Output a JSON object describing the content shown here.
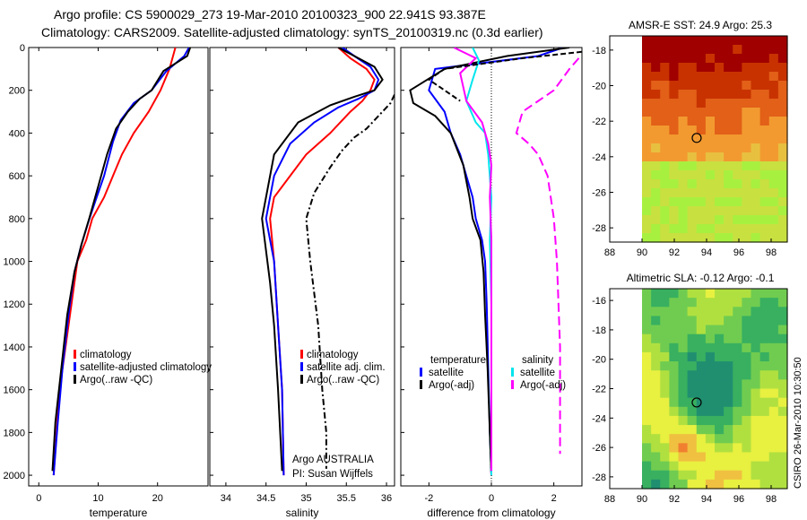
{
  "header": {
    "title_line1": "Argo profile: CS 5900029_273 19-Mar-2010 20100323_900 22.941S 93.387E",
    "title_line2": "Climatology: CARS2009. Satellite-adjusted climatology: synTS_20100319.nc (0.3d earlier)"
  },
  "credit": {
    "argo_line1": "Argo AUSTRALIA",
    "argo_line2": "PI: Susan Wijffels",
    "csiro_stamp": "CSIRO 26-Mar-2010 10:30:50"
  },
  "colors": {
    "climatology": "#ff0000",
    "satellite": "#0000ff",
    "argo": "#000000",
    "cyan": "#00e5ee",
    "magenta": "#ff00ff"
  },
  "chart_data": [
    {
      "type": "line",
      "name": "temperature-panel",
      "xlabel": "temperature",
      "xlim": [
        -1.7,
        28.5
      ],
      "ylim": [
        0,
        2050
      ],
      "y_reversed": true,
      "xticks": [
        0,
        10,
        20
      ],
      "yticks": [
        0,
        200,
        400,
        600,
        800,
        1000,
        1200,
        1400,
        1600,
        1800,
        2000
      ],
      "legend": [
        "climatology",
        "satellite-adjusted climatology",
        "Argo(..raw -QC)"
      ],
      "series": [
        {
          "key": "climatology",
          "color": "#ff0000",
          "dash": "",
          "x": [
            23.0,
            22.8,
            22.0,
            20.5,
            18.5,
            16.0,
            14.0,
            12.5,
            11.0,
            9.0,
            8.0,
            6.5,
            5.5,
            4.5,
            3.5,
            3.0,
            2.5
          ],
          "y": [
            0,
            20,
            100,
            200,
            300,
            400,
            500,
            600,
            700,
            800,
            900,
            1000,
            1200,
            1400,
            1600,
            1800,
            2000
          ]
        },
        {
          "key": "satellite",
          "color": "#0000ff",
          "dash": "",
          "x": [
            25.3,
            24.5,
            21.5,
            19.0,
            16.0,
            13.8,
            12.5,
            11.0,
            9.5,
            8.3,
            7.2,
            6.0,
            5.0,
            4.0,
            3.2,
            2.5
          ],
          "y": [
            0,
            40,
            110,
            200,
            260,
            340,
            440,
            600,
            720,
            820,
            920,
            1050,
            1250,
            1500,
            1750,
            2000
          ]
        },
        {
          "key": "argo",
          "color": "#000000",
          "dash": "",
          "x": [
            25.5,
            25.0,
            21.0,
            19.0,
            17.0,
            15.0,
            13.0,
            11.5,
            10.0,
            8.5,
            7.2,
            6.0,
            4.8,
            3.8,
            2.8,
            2.3
          ],
          "y": [
            0,
            40,
            110,
            200,
            240,
            300,
            380,
            500,
            650,
            800,
            920,
            1050,
            1250,
            1500,
            1750,
            1980
          ]
        }
      ]
    },
    {
      "type": "line",
      "name": "salinity-panel",
      "xlabel": "salinity",
      "xlim": [
        33.8,
        36.1
      ],
      "ylim": [
        0,
        2050
      ],
      "y_reversed": true,
      "xticks": [
        34,
        34.5,
        35,
        35.5,
        36
      ],
      "xticklabels": [
        "34",
        "34.5",
        "35",
        "35.5",
        "36"
      ],
      "legend": [
        "climatology",
        "satellite adj. clim.",
        "Argo(..raw -QC)"
      ],
      "series": [
        {
          "key": "climatology",
          "color": "#ff0000",
          "dash": "",
          "x": [
            35.4,
            35.55,
            35.75,
            35.85,
            35.8,
            35.7,
            35.55,
            35.3,
            35.0,
            34.8,
            34.6,
            34.55,
            34.6,
            34.65,
            34.7,
            34.72
          ],
          "y": [
            0,
            50,
            100,
            150,
            200,
            250,
            300,
            400,
            500,
            600,
            700,
            800,
            1000,
            1300,
            1600,
            2000
          ]
        },
        {
          "key": "satellite",
          "color": "#0000ff",
          "dash": "",
          "x": [
            35.45,
            35.6,
            35.8,
            35.9,
            35.85,
            35.65,
            35.4,
            35.1,
            34.8,
            34.6,
            34.5,
            34.55,
            34.6,
            34.65,
            34.7,
            34.72
          ],
          "y": [
            0,
            40,
            90,
            150,
            200,
            240,
            280,
            350,
            450,
            600,
            800,
            900,
            1000,
            1300,
            1600,
            2000
          ]
        },
        {
          "key": "argo",
          "color": "#000000",
          "dash": "",
          "x": [
            35.4,
            35.6,
            35.85,
            35.95,
            35.85,
            35.6,
            35.3,
            34.9,
            34.6,
            34.45,
            34.5,
            34.55,
            34.6,
            34.65,
            34.7
          ],
          "y": [
            0,
            40,
            90,
            150,
            200,
            230,
            270,
            350,
            500,
            800,
            950,
            1100,
            1300,
            1600,
            1980
          ]
        },
        {
          "key": "argo_raw",
          "color": "#000000",
          "dash": "7 3 2 3",
          "x": [
            36.1,
            36.05,
            35.9,
            35.75,
            35.6,
            35.45,
            35.3,
            35.1,
            35.0,
            35.05,
            35.15,
            35.2,
            35.25,
            35.25
          ],
          "y": [
            220,
            260,
            320,
            380,
            420,
            480,
            560,
            680,
            800,
            1000,
            1300,
            1600,
            1800,
            1970
          ]
        }
      ]
    },
    {
      "type": "line",
      "name": "difference-panel",
      "xlabel": "difference from climatology",
      "xlim": [
        -2.9,
        2.9
      ],
      "ylim": [
        0,
        2050
      ],
      "y_reversed": true,
      "xticks": [
        -2,
        0,
        2
      ],
      "zero_line": true,
      "legend": [
        "temperature",
        "satellite",
        "Argo(-adj)",
        "salinity",
        "satellite",
        "Argo(-adj)"
      ],
      "series": [
        {
          "key": "temp_satellite",
          "color": "#0000ff",
          "dash": "",
          "x": [
            2.3,
            1.5,
            -1.8,
            -2.0,
            -1.5,
            -1.3,
            -1.0,
            -0.8,
            -0.6,
            -0.5,
            -0.3,
            -0.2,
            -0.15,
            -0.1,
            -0.05,
            0.0
          ],
          "y": [
            0,
            40,
            100,
            200,
            300,
            400,
            500,
            600,
            700,
            800,
            900,
            1000,
            1200,
            1500,
            1800,
            2000
          ]
        },
        {
          "key": "temp_argo",
          "color": "#000000",
          "dash": "",
          "x": [
            2.5,
            0.5,
            -1.5,
            -2.6,
            -2.5,
            -1.8,
            -1.3,
            -0.9,
            -0.7,
            -0.6,
            -0.35,
            -0.25,
            -0.2,
            -0.12,
            -0.05,
            0.0
          ],
          "y": [
            0,
            40,
            100,
            200,
            260,
            320,
            400,
            550,
            700,
            800,
            900,
            1050,
            1250,
            1500,
            1800,
            2000
          ]
        },
        {
          "key": "sal_satellite",
          "color": "#00e5ee",
          "dash": "",
          "x": [
            -0.6,
            -0.4,
            -0.6,
            -0.8,
            -0.5,
            -0.2,
            -0.1,
            0.0,
            -0.05,
            0.0,
            0.0,
            0.0
          ],
          "y": [
            0,
            60,
            150,
            250,
            350,
            400,
            500,
            700,
            900,
            1200,
            1600,
            2000
          ]
        },
        {
          "key": "sal_argo",
          "color": "#ff00ff",
          "dash": "",
          "x": [
            -1.2,
            -0.5,
            -1.0,
            -0.8,
            -0.3,
            -0.1,
            0.0,
            -0.05,
            0.0,
            0.0,
            0.0,
            0.0
          ],
          "y": [
            0,
            50,
            120,
            250,
            350,
            450,
            550,
            700,
            900,
            1200,
            1600,
            1980
          ]
        },
        {
          "key": "sal_argo_raw",
          "color": "#ff00ff",
          "dash": "10 5",
          "x": [
            2.8,
            2.5,
            2.0,
            1.0,
            0.8,
            1.2,
            1.5,
            1.8,
            1.9,
            2.0,
            2.1,
            2.2,
            2.2
          ],
          "y": [
            50,
            100,
            200,
            300,
            400,
            450,
            500,
            600,
            700,
            800,
            1000,
            1400,
            1900
          ]
        },
        {
          "key": "dark_near_surface",
          "color": "#000000",
          "dash": "6 3",
          "x": [
            2.9,
            1.0,
            -1.5,
            -2.0,
            -1.5,
            -1.0
          ],
          "y": [
            20,
            50,
            100,
            150,
            200,
            250
          ]
        }
      ]
    },
    {
      "type": "heatmap",
      "name": "sst-map",
      "title": "AMSR-E SST: 24.9 Argo: 25.3",
      "xlim": [
        88,
        99
      ],
      "ylim": [
        -28.8,
        -17.2
      ],
      "xticks": [
        88,
        90,
        92,
        94,
        96,
        98
      ],
      "yticks": [
        -18,
        -20,
        -22,
        -24,
        -26,
        -28
      ],
      "data_xlim": [
        90,
        99
      ],
      "marker": {
        "lon": 93.387,
        "lat": -22.941
      },
      "palette": [
        "#a00000",
        "#c83200",
        "#e26018",
        "#f29a30",
        "#e8c040",
        "#c8e040",
        "#a8f040"
      ]
    },
    {
      "type": "heatmap",
      "name": "sla-map",
      "title": "Altimetric SLA: -0.12 Argo: -0.1",
      "xlim": [
        88,
        99
      ],
      "ylim": [
        -28.8,
        -15.2
      ],
      "xticks": [
        88,
        90,
        92,
        94,
        96,
        98
      ],
      "yticks": [
        -16,
        -18,
        -20,
        -22,
        -24,
        -26,
        -28
      ],
      "data_xlim": [
        90,
        99
      ],
      "marker": {
        "lon": 93.387,
        "lat": -22.941
      },
      "palette": [
        "#208f70",
        "#38b060",
        "#70cc50",
        "#b0e040",
        "#e8f040",
        "#f0c040",
        "#f08030"
      ]
    }
  ]
}
